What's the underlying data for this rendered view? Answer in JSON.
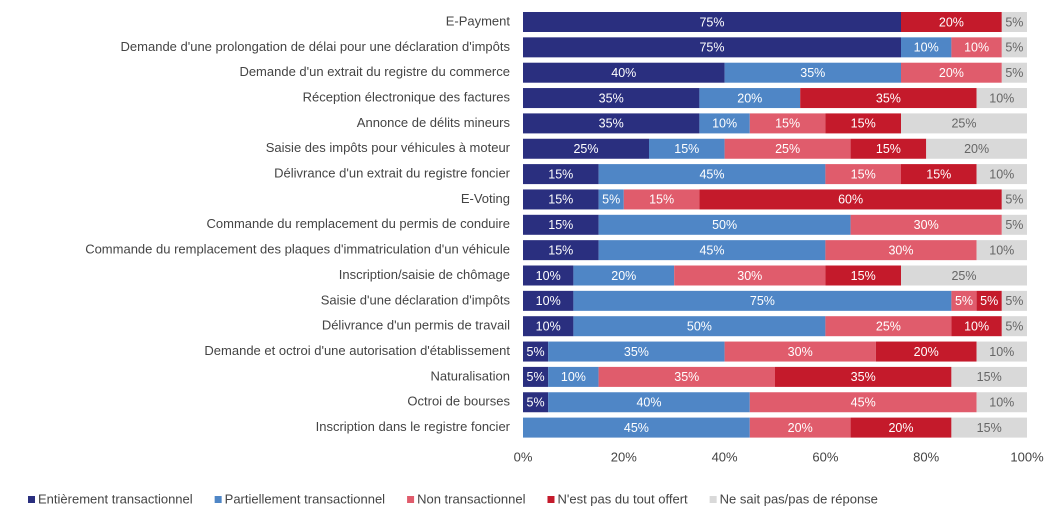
{
  "chart_data": {
    "type": "stacked-bar-horizontal",
    "categories": [
      "E-Payment",
      "Demande d'une prolongation de délai pour une déclaration d'impôts",
      "Demande d'un extrait du registre du commerce",
      "Réception électronique des factures",
      "Annonce de délits mineurs",
      "Saisie des impôts pour véhicules à moteur",
      "Délivrance d'un extrait du registre foncier",
      "E-Voting",
      "Commande du remplacement du permis de conduire",
      "Commande du remplacement des plaques d'immatriculation d'un véhicule",
      "Inscription/saisie de chômage",
      "Saisie d'une déclaration d'impôts",
      "Délivrance d'un permis de travail",
      "Demande et octroi d'une autorisation d'établissement",
      "Naturalisation",
      "Octroi de bourses",
      "Inscription dans le registre foncier"
    ],
    "series": [
      {
        "name": "Entièrement transactionnel",
        "color": "#2a2f7f",
        "values": [
          75,
          75,
          40,
          35,
          35,
          25,
          15,
          15,
          15,
          15,
          10,
          10,
          10,
          5,
          5,
          5,
          0
        ],
        "value_labels": [
          "75%",
          "75%",
          "40%",
          "35%",
          "35%",
          "25%",
          "15%",
          "15%",
          "15%",
          "15%",
          "10%",
          "10%",
          "10%",
          "5%",
          "5%",
          "5%",
          null
        ]
      },
      {
        "name": "Partiellement transactionnel",
        "color": "#4f86c6",
        "values": [
          0,
          10,
          35,
          20,
          10,
          15,
          45,
          5,
          50,
          45,
          20,
          75,
          50,
          35,
          10,
          40,
          45
        ],
        "value_labels": [
          null,
          "10%",
          "35%",
          "20%",
          "10%",
          "15%",
          "45%",
          "5%",
          "50%",
          "45%",
          "20%",
          "75%",
          "50%",
          "35%",
          "10%",
          "40%",
          "45%"
        ]
      },
      {
        "name": "Non transactionnel",
        "color": "#e05c6c",
        "values": [
          0,
          10,
          20,
          0,
          15,
          25,
          15,
          15,
          30,
          30,
          30,
          5,
          25,
          30,
          35,
          45,
          20
        ],
        "value_labels": [
          null,
          "10%",
          "20%",
          null,
          "15%",
          "25%",
          "15%",
          "15%",
          "30%",
          "30%",
          "30%",
          "5%",
          "25%",
          "30%",
          "35%",
          "45%",
          "20%"
        ]
      },
      {
        "name": "N'est pas du tout offert",
        "color": "#c41a2b",
        "values": [
          20,
          0,
          0,
          35,
          15,
          15,
          15,
          60,
          0,
          0,
          15,
          5,
          10,
          20,
          35,
          0,
          20
        ],
        "value_labels": [
          "20%",
          null,
          null,
          "35%",
          "15%",
          "15%",
          "15%",
          "60%",
          null,
          null,
          "15%",
          "5%",
          "10%",
          "20%",
          "35%",
          null,
          "20%"
        ]
      },
      {
        "name": "Ne sait pas/pas de réponse",
        "color": "#d9d9d9",
        "values": [
          5,
          5,
          5,
          10,
          25,
          20,
          10,
          5,
          5,
          10,
          25,
          5,
          5,
          10,
          15,
          10,
          15
        ],
        "value_labels": [
          "5%",
          "5%",
          "5%",
          "10%",
          "25%",
          "20%",
          "10%",
          "5%",
          "5%",
          "10%",
          "25%",
          "5%",
          "5%",
          "10%",
          "15%",
          "10%",
          "15%"
        ]
      }
    ],
    "xlim": [
      0,
      100
    ],
    "xticks": [
      {
        "value": 0,
        "label": "0%"
      },
      {
        "value": 20,
        "label": "20%"
      },
      {
        "value": 40,
        "label": "40%"
      },
      {
        "value": 60,
        "label": "60%"
      },
      {
        "value": 80,
        "label": "80%"
      },
      {
        "value": 100,
        "label": "100%"
      }
    ],
    "legend": "bottom"
  }
}
